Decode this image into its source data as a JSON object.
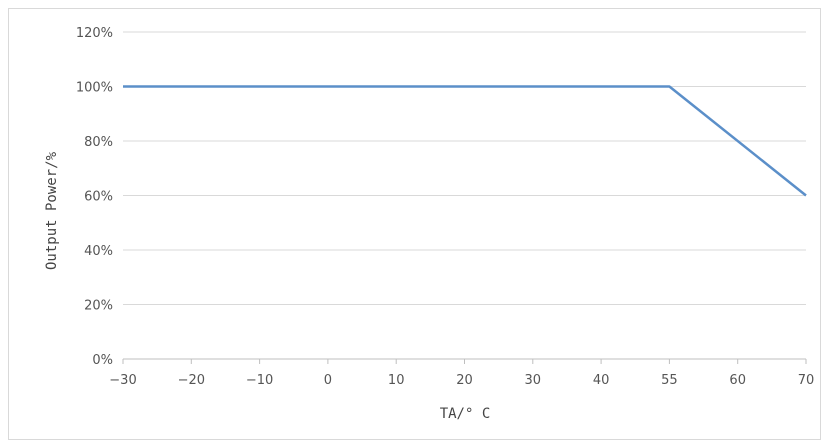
{
  "chart_data": {
    "type": "line",
    "xlabel": "TA/° C",
    "ylabel": "Output Power/%",
    "x_ticks": [
      "-30",
      "-20",
      "-10",
      "0",
      "10",
      "20",
      "30",
      "40",
      "55",
      "60",
      "70"
    ],
    "y_ticks": [
      "0%",
      "20%",
      "40%",
      "60%",
      "80%",
      "100%",
      "120%"
    ],
    "ylim": [
      0,
      120
    ],
    "grid": "horizontal",
    "series": [
      {
        "color": "#5b8fc9",
        "points": [
          {
            "x": "-30",
            "y": 100
          },
          {
            "x": "55",
            "y": 100
          },
          {
            "x": "70",
            "y": 60
          }
        ]
      }
    ]
  }
}
